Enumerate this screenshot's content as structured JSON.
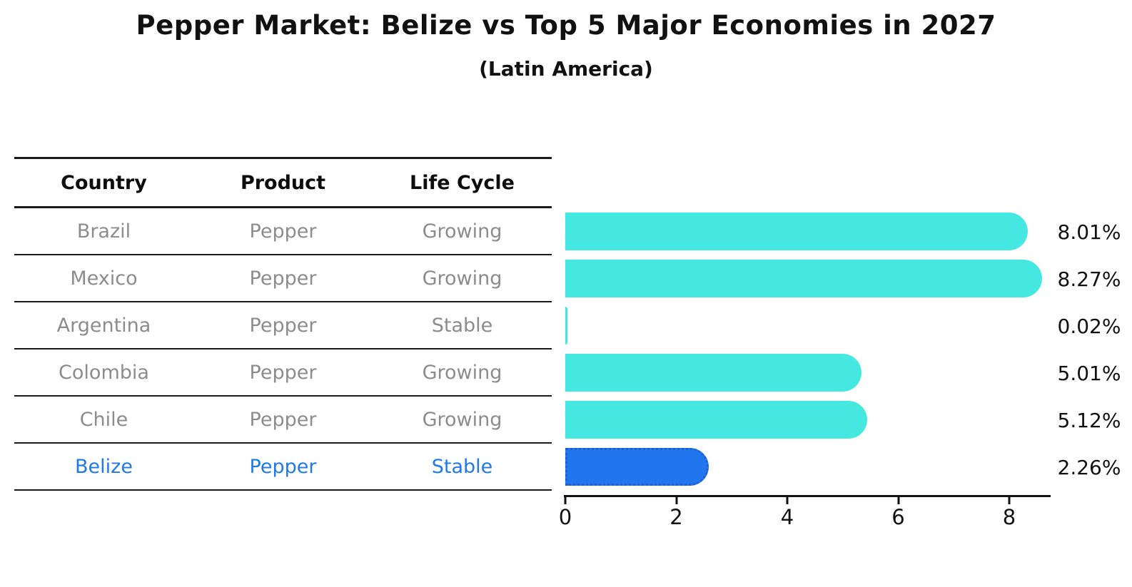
{
  "title": "Pepper Market: Belize vs Top 5 Major Economies in 2027",
  "subtitle": "(Latin America)",
  "table": {
    "headers": [
      "Country",
      "Product",
      "Life Cycle"
    ],
    "rows": [
      {
        "country": "Brazil",
        "product": "Pepper",
        "life_cycle": "Growing",
        "highlight": false
      },
      {
        "country": "Mexico",
        "product": "Pepper",
        "life_cycle": "Growing",
        "highlight": false
      },
      {
        "country": "Argentina",
        "product": "Pepper",
        "life_cycle": "Stable",
        "highlight": false
      },
      {
        "country": "Colombia",
        "product": "Pepper",
        "life_cycle": "Growing",
        "highlight": false
      },
      {
        "country": "Chile",
        "product": "Pepper",
        "life_cycle": "Growing",
        "highlight": false
      },
      {
        "country": "Belize",
        "product": "Pepper",
        "life_cycle": "Stable",
        "highlight": true
      }
    ]
  },
  "chart_data": {
    "type": "bar",
    "orientation": "horizontal",
    "title": "Pepper Market: Belize vs Top 5 Major Economies in 2027",
    "subtitle": "(Latin America)",
    "categories": [
      "Brazil",
      "Mexico",
      "Argentina",
      "Colombia",
      "Chile",
      "Belize"
    ],
    "values": [
      8.01,
      8.27,
      0.02,
      5.01,
      5.12,
      2.26
    ],
    "value_labels": [
      "8.01%",
      "8.27%",
      "0.02%",
      "5.01%",
      "5.12%",
      "2.26%"
    ],
    "x_ticks": [
      0,
      2,
      4,
      6,
      8
    ],
    "xlim": [
      0,
      8.72
    ],
    "grid": false,
    "legend": false,
    "bar_color": "#45e8e1",
    "highlight_index": 5,
    "highlight_color": "#2176f0",
    "highlight_edge": "#1b5fd6"
  },
  "colors": {
    "highlight_text": "#1f7ae8",
    "row_text": "#8c8c8c",
    "axis": "#111111"
  }
}
